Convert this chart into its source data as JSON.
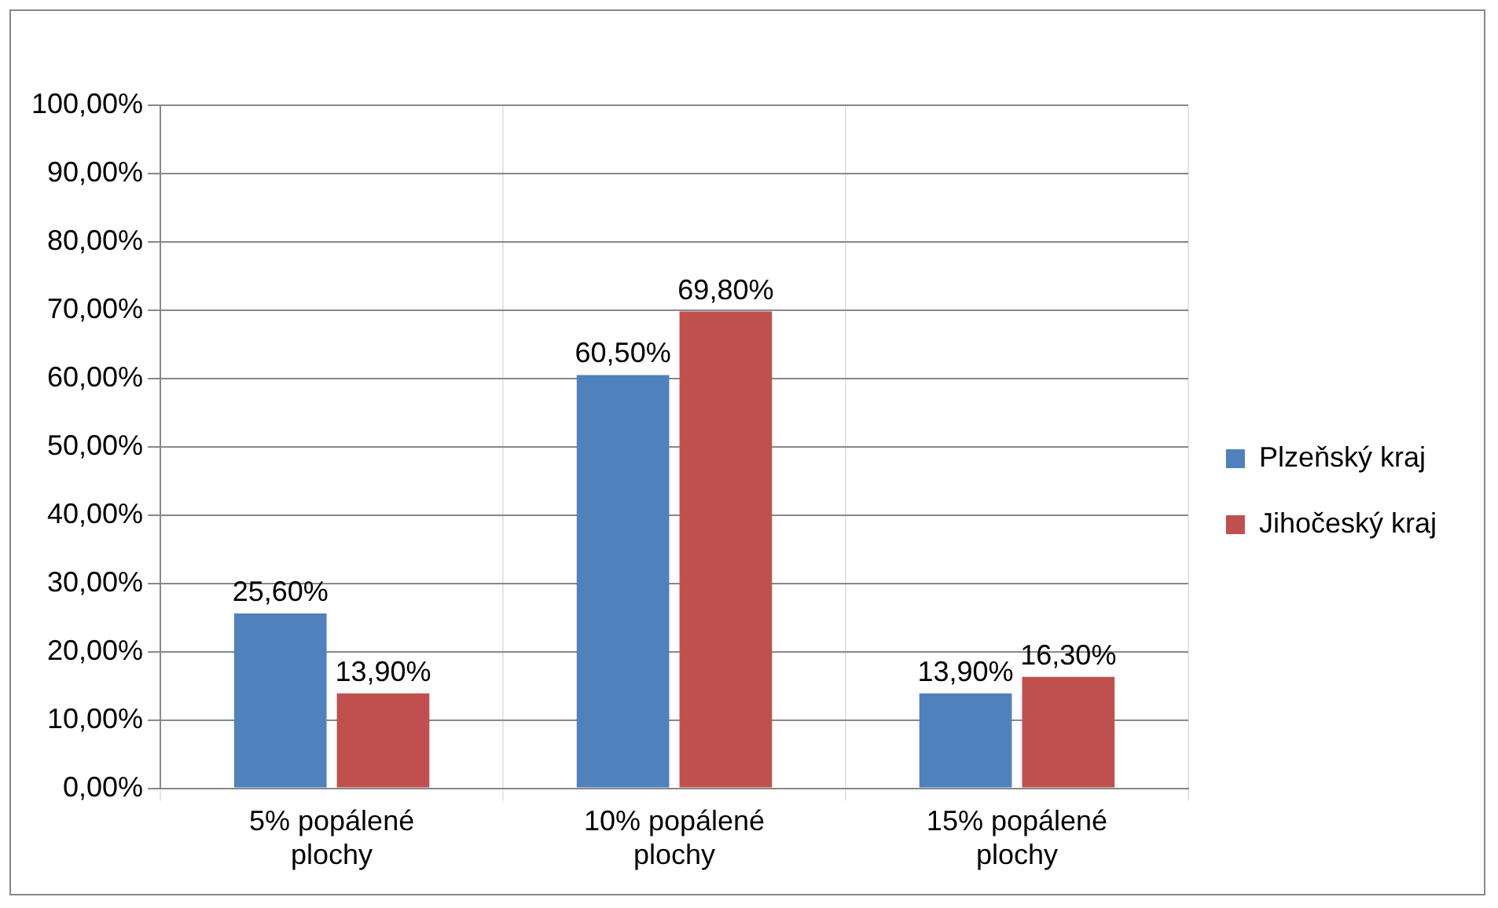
{
  "chart_data": {
    "type": "bar",
    "categories": [
      "5% popálené plochy",
      "10% popálené plochy",
      "15% popálené plochy"
    ],
    "series": [
      {
        "name": "Plzeňský kraj",
        "color": "#4f81bd",
        "values": [
          25.6,
          60.5,
          13.9
        ],
        "value_labels": [
          "25,60%",
          "60,50%",
          "13,90%"
        ]
      },
      {
        "name": "Jihočeský kraj",
        "color": "#c0504d",
        "values": [
          13.9,
          69.8,
          16.3
        ],
        "value_labels": [
          "13,90%",
          "69,80%",
          "16,30%"
        ]
      }
    ],
    "ylim": [
      0,
      100
    ],
    "yticks": [
      {
        "value": 0,
        "label": "0,00%"
      },
      {
        "value": 10,
        "label": "10,00%"
      },
      {
        "value": 20,
        "label": "20,00%"
      },
      {
        "value": 30,
        "label": "30,00%"
      },
      {
        "value": 40,
        "label": "40,00%"
      },
      {
        "value": 50,
        "label": "50,00%"
      },
      {
        "value": 60,
        "label": "60,00%"
      },
      {
        "value": 70,
        "label": "70,00%"
      },
      {
        "value": 80,
        "label": "80,00%"
      },
      {
        "value": 90,
        "label": "90,00%"
      },
      {
        "value": 100,
        "label": "100,00%"
      }
    ],
    "grid": true,
    "legend": "right"
  }
}
